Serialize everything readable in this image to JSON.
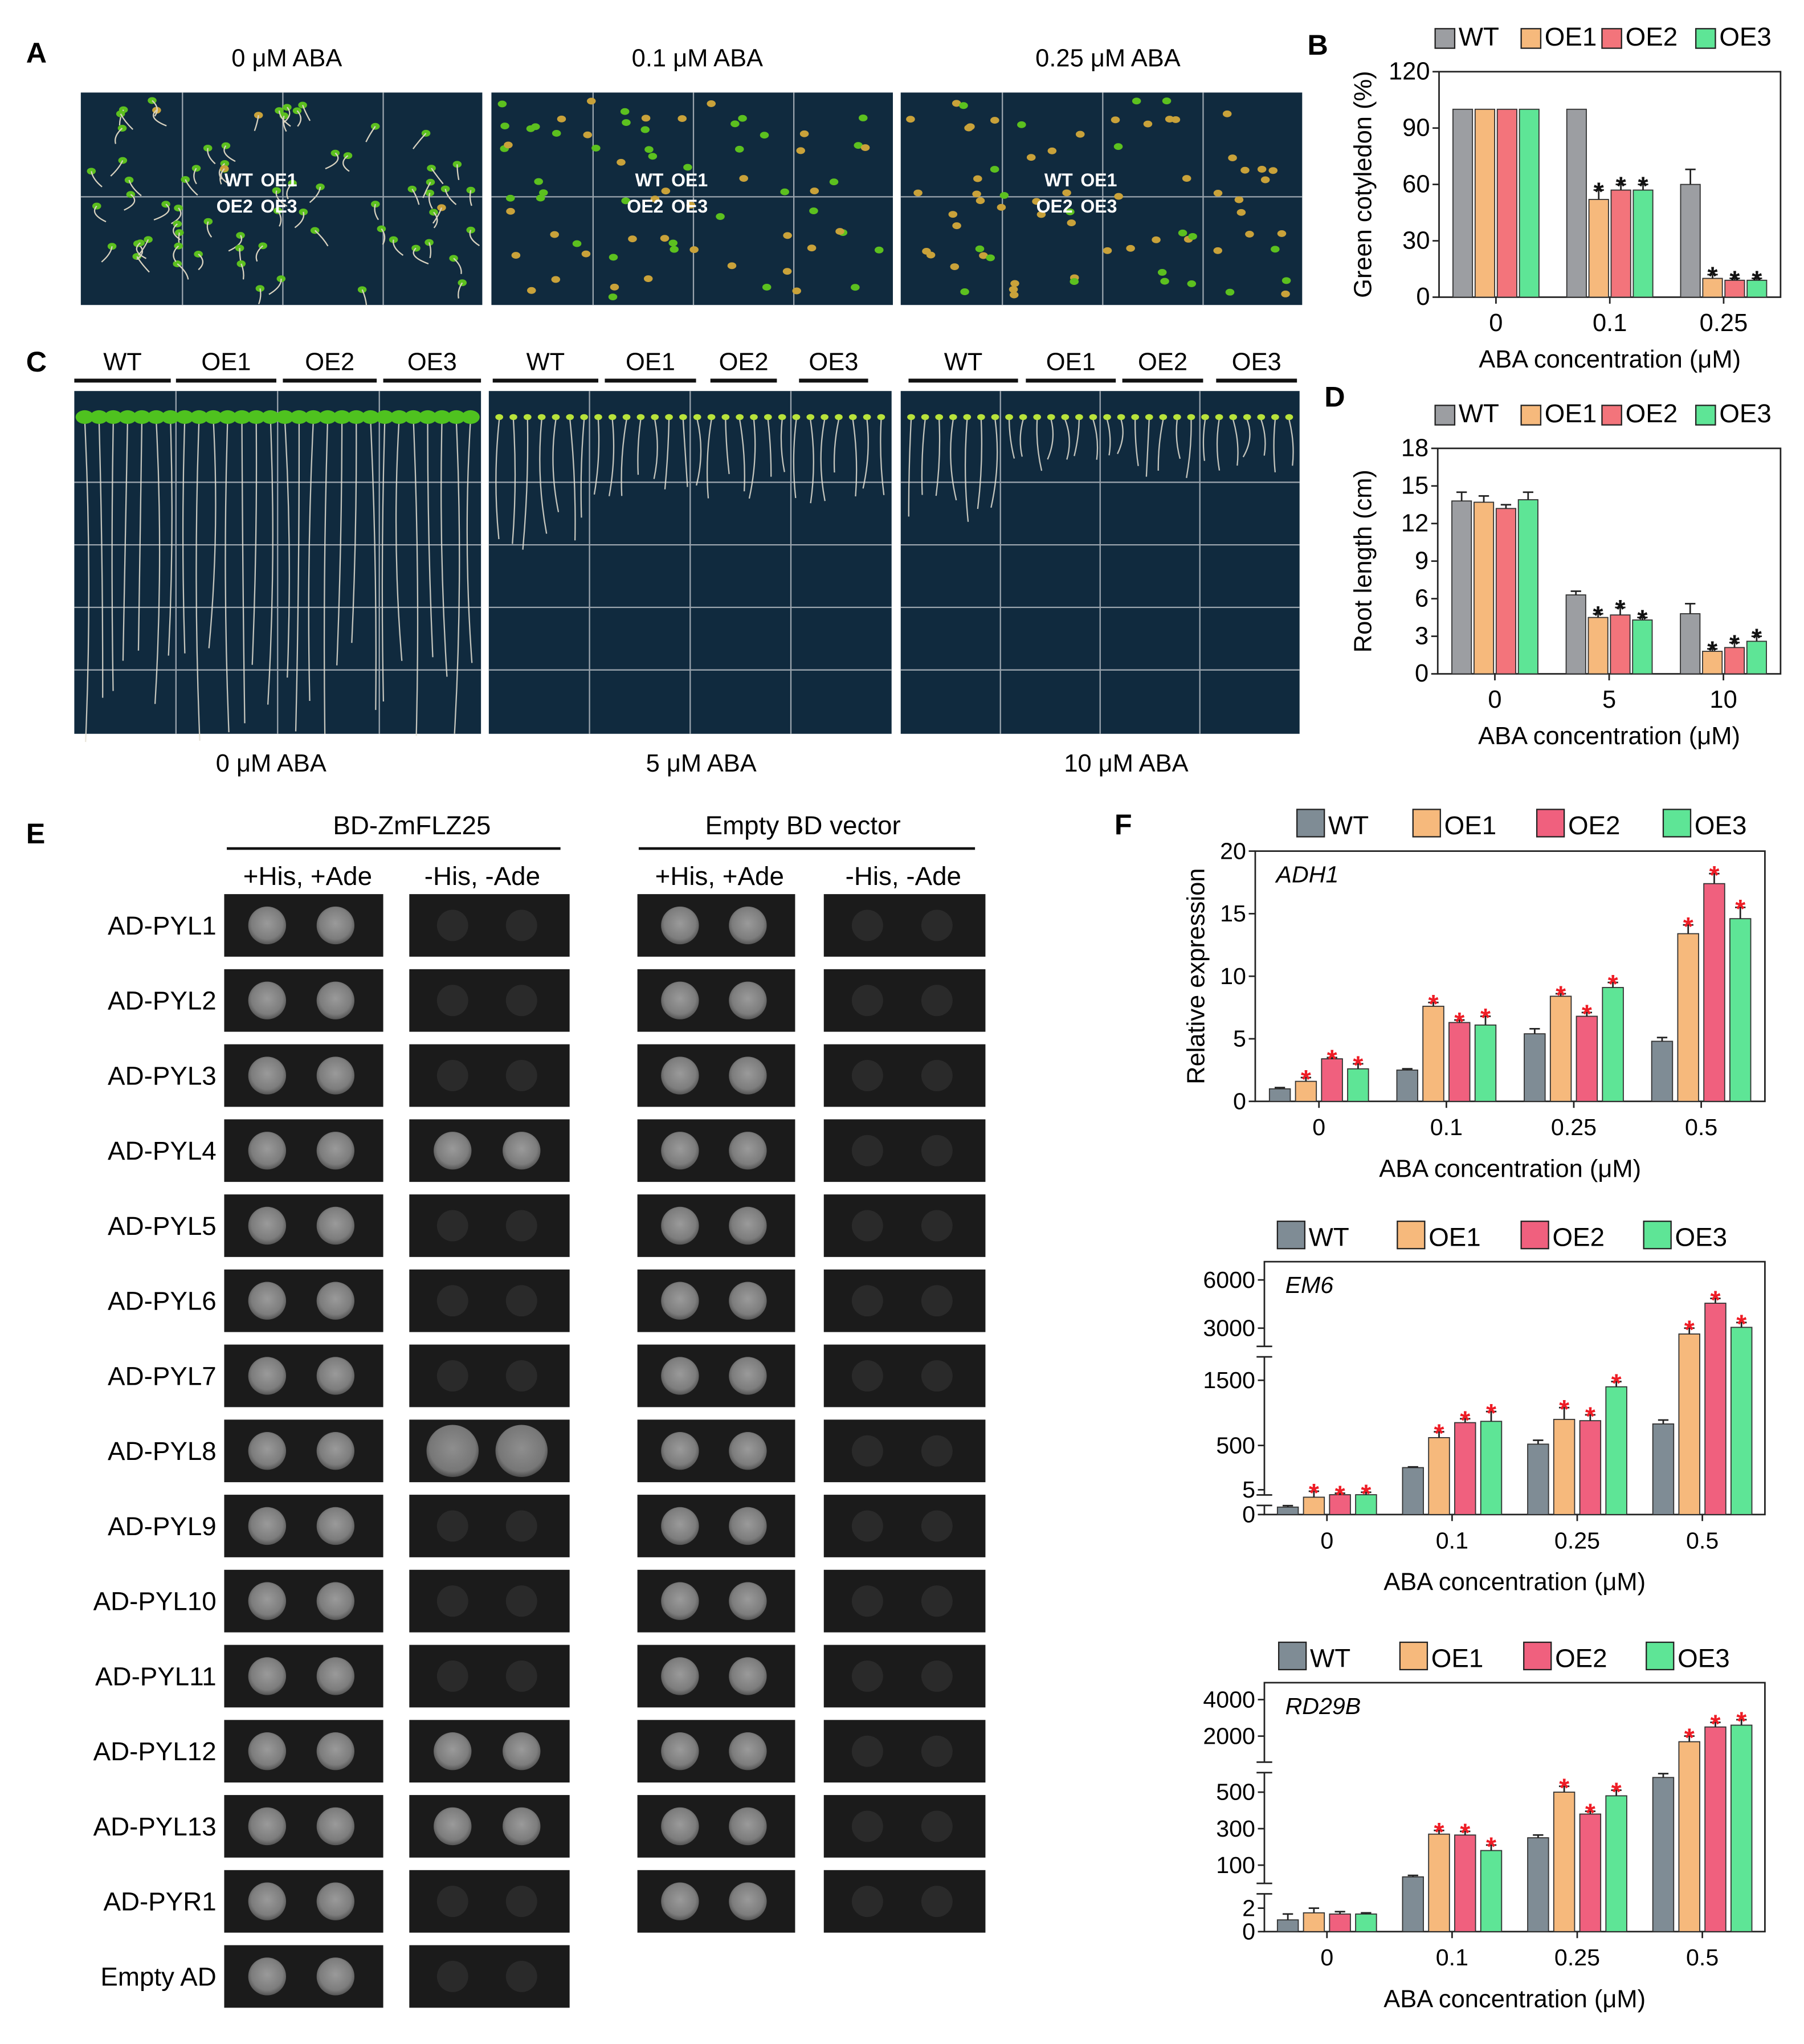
{
  "panels": {
    "A": "A",
    "B": "B",
    "C": "C",
    "D": "D",
    "E": "E",
    "F": "F"
  },
  "colors": {
    "WT": "#9c9ea2",
    "OE1": "#f6b97c",
    "OE2": "#f3747b",
    "OE3": "#5ee596",
    "F_WT": "#7f8c95",
    "F_OE2": "#f0607e",
    "plate": "#102a3e",
    "grid": "#9aa4ad",
    "sig_black": "#111111",
    "sig_red": "#ee1c25"
  },
  "genotypes": [
    "WT",
    "OE1",
    "OE2",
    "OE3"
  ],
  "panelA": {
    "labels": [
      "0 μM ABA",
      "0.1 μM ABA",
      "0.25 μM ABA"
    ],
    "plate_text": [
      "WT",
      "OE1",
      "OE2",
      "OE3"
    ]
  },
  "panelC": {
    "labels": [
      "0 μM ABA",
      "5 μM ABA",
      "10 μM ABA"
    ],
    "genotypes": [
      "WT",
      "OE1",
      "OE2",
      "OE3"
    ]
  },
  "panelE": {
    "groups": [
      "BD-ZmFLZ25",
      "Empty BD vector"
    ],
    "conditions": [
      "+His, +Ade",
      "-His, -Ade"
    ],
    "rows": [
      "AD-PYL1",
      "AD-PYL2",
      "AD-PYL3",
      "AD-PYL4",
      "AD-PYL5",
      "AD-PYL6",
      "AD-PYL7",
      "AD-PYL8",
      "AD-PYL9",
      "AD-PYL10",
      "AD-PYL11",
      "AD-PYL12",
      "AD-PYL13",
      "AD-PYR1",
      "Empty AD"
    ],
    "growth_bd": [
      false,
      false,
      false,
      true,
      false,
      false,
      false,
      true,
      false,
      false,
      false,
      true,
      true,
      false,
      false
    ]
  },
  "chart_data": [
    {
      "id": "B",
      "type": "bar",
      "ylabel": "Green cotyledon (%)",
      "xlabel": "ABA concentration (μM)",
      "categories": [
        "0",
        "0.1",
        "0.25"
      ],
      "ylim": [
        0,
        120
      ],
      "yticks": [
        0,
        30,
        60,
        90,
        120
      ],
      "series": [
        {
          "name": "WT",
          "values": [
            100,
            100,
            60
          ],
          "err": [
            0,
            0,
            8
          ],
          "sig": [
            false,
            false,
            false
          ]
        },
        {
          "name": "OE1",
          "values": [
            100,
            52,
            10
          ],
          "err": [
            0,
            5,
            2
          ],
          "sig": [
            false,
            true,
            true
          ]
        },
        {
          "name": "OE2",
          "values": [
            100,
            57,
            9
          ],
          "err": [
            0,
            3,
            1
          ],
          "sig": [
            false,
            true,
            true
          ]
        },
        {
          "name": "OE3",
          "values": [
            100,
            57,
            9
          ],
          "err": [
            0,
            3,
            1
          ],
          "sig": [
            false,
            true,
            true
          ]
        }
      ]
    },
    {
      "id": "D",
      "type": "bar",
      "ylabel": "Root length (cm)",
      "xlabel": "ABA concentration (μM)",
      "categories": [
        "0",
        "5",
        "10"
      ],
      "ylim": [
        0,
        18
      ],
      "yticks": [
        0,
        3,
        6,
        9,
        12,
        15,
        18
      ],
      "series": [
        {
          "name": "WT",
          "values": [
            13.8,
            6.3,
            4.8
          ],
          "err": [
            0.7,
            0.3,
            0.8
          ],
          "sig": [
            false,
            false,
            false
          ]
        },
        {
          "name": "OE1",
          "values": [
            13.7,
            4.5,
            1.8
          ],
          "err": [
            0.5,
            0.3,
            0.2
          ],
          "sig": [
            false,
            true,
            true
          ]
        },
        {
          "name": "OE2",
          "values": [
            13.2,
            4.7,
            2.1
          ],
          "err": [
            0.3,
            0.6,
            0.4
          ],
          "sig": [
            false,
            true,
            true
          ]
        },
        {
          "name": "OE3",
          "values": [
            13.9,
            4.3,
            2.6
          ],
          "err": [
            0.6,
            0.2,
            0.4
          ],
          "sig": [
            false,
            true,
            true
          ]
        }
      ]
    },
    {
      "id": "F1",
      "type": "bar",
      "gene": "ADH1",
      "ylabel": "Relative  expression",
      "xlabel": "ABA concentration (μM)",
      "categories": [
        "0",
        "0.1",
        "0.25",
        "0.5"
      ],
      "yticks": [
        0,
        5,
        10,
        15,
        20
      ],
      "series": [
        {
          "name": "WT",
          "values": [
            1.0,
            2.5,
            5.4,
            4.8
          ],
          "err": [
            0.1,
            0.1,
            0.4,
            0.3
          ],
          "sig": [
            false,
            false,
            false,
            false
          ]
        },
        {
          "name": "OE1",
          "values": [
            1.6,
            7.6,
            8.4,
            13.4
          ],
          "err": [
            0.3,
            0.3,
            0.2,
            0.7
          ],
          "sig": [
            true,
            true,
            true,
            true
          ]
        },
        {
          "name": "OE2",
          "values": [
            3.4,
            6.3,
            6.8,
            17.4
          ],
          "err": [
            0.1,
            0.2,
            0.3,
            0.8
          ],
          "sig": [
            true,
            true,
            true,
            true
          ]
        },
        {
          "name": "OE3",
          "values": [
            2.6,
            6.1,
            9.1,
            14.6
          ],
          "err": [
            0.4,
            0.7,
            0.4,
            0.9
          ],
          "sig": [
            true,
            true,
            true,
            true
          ]
        }
      ]
    },
    {
      "id": "F2",
      "type": "bar",
      "gene": "EM6",
      "xlabel": "ABA concentration (μM)",
      "categories": [
        "0",
        "0.1",
        "0.25",
        "0.5"
      ],
      "yticks": [
        0,
        5,
        500,
        1500,
        3000,
        6000
      ],
      "series": [
        {
          "name": "WT",
          "values": [
            1.5,
            190,
            520,
            830
          ],
          "err": [
            0.3,
            10,
            60,
            60
          ],
          "sig": [
            false,
            false,
            false,
            false
          ]
        },
        {
          "name": "OE1",
          "values": [
            3.5,
            620,
            900,
            2700
          ],
          "err": [
            1.2,
            90,
            180,
            300
          ],
          "sig": [
            true,
            true,
            true,
            true
          ]
        },
        {
          "name": "OE2",
          "values": [
            4,
            850,
            880,
            4550
          ],
          "err": [
            0.3,
            60,
            90,
            300
          ],
          "sig": [
            true,
            true,
            true,
            true
          ]
        },
        {
          "name": "OE3",
          "values": [
            4,
            870,
            1400,
            3050
          ],
          "err": [
            0.5,
            150,
            80,
            300
          ],
          "sig": [
            true,
            true,
            true,
            true
          ]
        }
      ]
    },
    {
      "id": "F3",
      "type": "bar",
      "gene": "RD29B",
      "xlabel": "ABA concentration (μM)",
      "categories": [
        "0",
        "0.1",
        "0.25",
        "0.5"
      ],
      "yticks": [
        0,
        2,
        100,
        300,
        500,
        2000,
        4000
      ],
      "series": [
        {
          "name": "WT",
          "values": [
            1.0,
            60,
            250,
            650
          ],
          "err": [
            0.5,
            5,
            15,
            40
          ],
          "sig": [
            false,
            false,
            false,
            false
          ]
        },
        {
          "name": "OE1",
          "values": [
            1.6,
            270,
            500,
            1800
          ],
          "err": [
            0.4,
            20,
            60,
            200
          ],
          "sig": [
            false,
            true,
            true,
            true
          ]
        },
        {
          "name": "OE2",
          "values": [
            1.5,
            265,
            380,
            2500
          ],
          "err": [
            0.2,
            20,
            15,
            250
          ],
          "sig": [
            false,
            true,
            true,
            true
          ]
        },
        {
          "name": "OE3",
          "values": [
            1.5,
            180,
            480,
            2600
          ],
          "err": [
            0.1,
            30,
            40,
            300
          ],
          "sig": [
            false,
            true,
            true,
            true
          ]
        }
      ]
    }
  ]
}
